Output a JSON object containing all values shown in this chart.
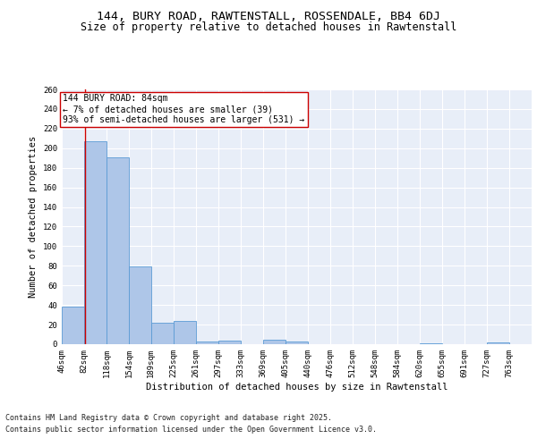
{
  "title1": "144, BURY ROAD, RAWTENSTALL, ROSSENDALE, BB4 6DJ",
  "title2": "Size of property relative to detached houses in Rawtenstall",
  "xlabel": "Distribution of detached houses by size in Rawtenstall",
  "ylabel": "Number of detached properties",
  "bins": [
    46,
    82,
    118,
    154,
    189,
    225,
    261,
    297,
    333,
    369,
    405,
    440,
    476,
    512,
    548,
    584,
    620,
    655,
    691,
    727,
    763
  ],
  "bin_labels": [
    "46sqm",
    "82sqm",
    "118sqm",
    "154sqm",
    "189sqm",
    "225sqm",
    "261sqm",
    "297sqm",
    "333sqm",
    "369sqm",
    "405sqm",
    "440sqm",
    "476sqm",
    "512sqm",
    "548sqm",
    "584sqm",
    "620sqm",
    "655sqm",
    "691sqm",
    "727sqm",
    "763sqm"
  ],
  "bar_heights": [
    38,
    207,
    191,
    79,
    22,
    24,
    3,
    4,
    0,
    5,
    3,
    0,
    0,
    0,
    0,
    0,
    1,
    0,
    0,
    2,
    0
  ],
  "bar_color": "#aec6e8",
  "bar_edge_color": "#5b9bd5",
  "vline_x": 84,
  "vline_color": "#cc0000",
  "annotation_text": "144 BURY ROAD: 84sqm\n← 7% of detached houses are smaller (39)\n93% of semi-detached houses are larger (531) →",
  "annotation_box_color": "white",
  "annotation_box_edge": "#cc0000",
  "ylim": [
    0,
    260
  ],
  "yticks": [
    0,
    20,
    40,
    60,
    80,
    100,
    120,
    140,
    160,
    180,
    200,
    220,
    240,
    260
  ],
  "bg_color": "#e8eef8",
  "grid_color": "white",
  "footer1": "Contains HM Land Registry data © Crown copyright and database right 2025.",
  "footer2": "Contains public sector information licensed under the Open Government Licence v3.0.",
  "title_fontsize": 9.5,
  "subtitle_fontsize": 8.5,
  "axis_label_fontsize": 7.5,
  "tick_fontsize": 6.5,
  "annotation_fontsize": 7,
  "footer_fontsize": 6
}
